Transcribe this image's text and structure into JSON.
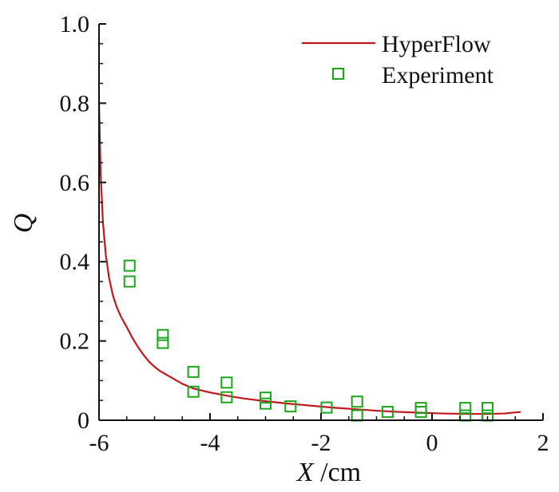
{
  "chart_data": {
    "type": "scatter",
    "xlabel_var": "X",
    "xlabel_unit": " /cm",
    "ylabel": "Q",
    "xlim": [
      -6,
      2
    ],
    "ylim": [
      0,
      1.0
    ],
    "x_ticks": [
      -6,
      -4,
      -2,
      0,
      2
    ],
    "x_tick_labels": [
      "-6",
      "-4",
      "-2",
      "0",
      "2"
    ],
    "y_ticks": [
      0,
      0.2,
      0.4,
      0.6,
      0.8,
      1.0
    ],
    "y_tick_labels": [
      "0",
      "0.2",
      "0.4",
      "0.6",
      "0.8",
      "1.0"
    ],
    "grid": false,
    "legend_position": "top-right",
    "series": [
      {
        "name": "HyperFlow",
        "kind": "line",
        "color": "#c0181e",
        "points": [
          [
            -6.0,
            0.8
          ],
          [
            -5.97,
            0.62
          ],
          [
            -5.93,
            0.5
          ],
          [
            -5.88,
            0.42
          ],
          [
            -5.82,
            0.36
          ],
          [
            -5.75,
            0.315
          ],
          [
            -5.68,
            0.285
          ],
          [
            -5.6,
            0.26
          ],
          [
            -5.5,
            0.235
          ],
          [
            -5.4,
            0.208
          ],
          [
            -5.3,
            0.185
          ],
          [
            -5.2,
            0.165
          ],
          [
            -5.1,
            0.148
          ],
          [
            -5.0,
            0.135
          ],
          [
            -4.9,
            0.124
          ],
          [
            -4.7,
            0.108
          ],
          [
            -4.5,
            0.092
          ],
          [
            -4.3,
            0.08
          ],
          [
            -4.0,
            0.07
          ],
          [
            -3.7,
            0.062
          ],
          [
            -3.4,
            0.055
          ],
          [
            -3.0,
            0.048
          ],
          [
            -2.6,
            0.042
          ],
          [
            -2.2,
            0.037
          ],
          [
            -1.8,
            0.032
          ],
          [
            -1.4,
            0.028
          ],
          [
            -1.0,
            0.024
          ],
          [
            -0.6,
            0.021
          ],
          [
            -0.2,
            0.019
          ],
          [
            0.2,
            0.017
          ],
          [
            0.6,
            0.016
          ],
          [
            1.0,
            0.016
          ],
          [
            1.3,
            0.017
          ],
          [
            1.6,
            0.021
          ]
        ]
      },
      {
        "name": "Experiment",
        "kind": "scatter",
        "marker": "square-open",
        "color": "#1aa61a",
        "points": [
          [
            -5.45,
            0.39
          ],
          [
            -5.45,
            0.35
          ],
          [
            -4.85,
            0.215
          ],
          [
            -4.85,
            0.195
          ],
          [
            -4.3,
            0.122
          ],
          [
            -4.3,
            0.072
          ],
          [
            -3.7,
            0.095
          ],
          [
            -3.7,
            0.058
          ],
          [
            -3.0,
            0.057
          ],
          [
            -3.0,
            0.042
          ],
          [
            -2.55,
            0.035
          ],
          [
            -1.9,
            0.032
          ],
          [
            -1.35,
            0.047
          ],
          [
            -1.35,
            0.012
          ],
          [
            -0.8,
            0.021
          ],
          [
            -0.2,
            0.031
          ],
          [
            -0.2,
            0.021
          ],
          [
            0.6,
            0.031
          ],
          [
            0.6,
            0.012
          ],
          [
            1.0,
            0.031
          ],
          [
            1.0,
            0.012
          ]
        ]
      }
    ]
  }
}
